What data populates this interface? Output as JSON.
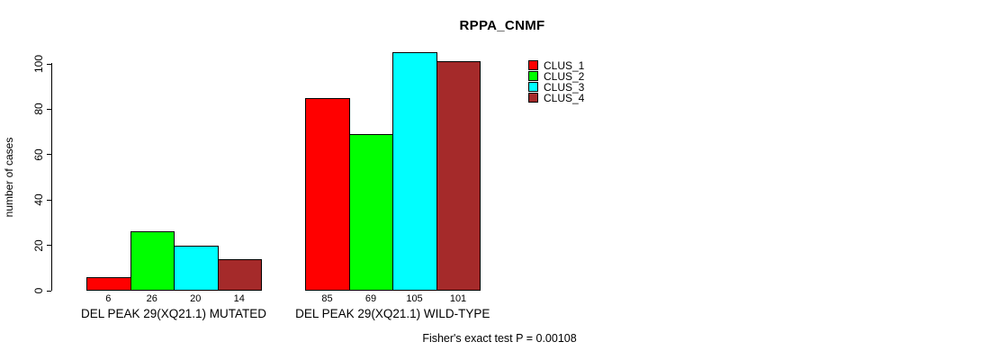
{
  "chart_data": {
    "type": "bar",
    "title": "RPPA_CNMF",
    "ylabel": "number of cases",
    "xlabel": "",
    "ylim": [
      0,
      110
    ],
    "yticks": [
      0,
      20,
      40,
      60,
      80,
      100
    ],
    "grid": false,
    "legend_position": "right",
    "groups": [
      "DEL PEAK 29(XQ21.1) MUTATED",
      "DEL PEAK 29(XQ21.1) WILD-TYPE"
    ],
    "series": [
      {
        "name": "CLUS_1",
        "color": "#ff0000",
        "values": [
          6,
          85
        ]
      },
      {
        "name": "CLUS_2",
        "color": "#00ff00",
        "values": [
          26,
          69
        ]
      },
      {
        "name": "CLUS_3",
        "color": "#00ffff",
        "values": [
          20,
          105
        ]
      },
      {
        "name": "CLUS_4",
        "color": "#a52a2a",
        "values": [
          14,
          101
        ]
      }
    ],
    "bar_value_labels_shown": true
  },
  "annotation": {
    "fisher_text": "Fisher's exact test P = 0.00108"
  },
  "colors": {
    "background": "#ffffff",
    "axis": "#000000",
    "text": "#000000"
  }
}
